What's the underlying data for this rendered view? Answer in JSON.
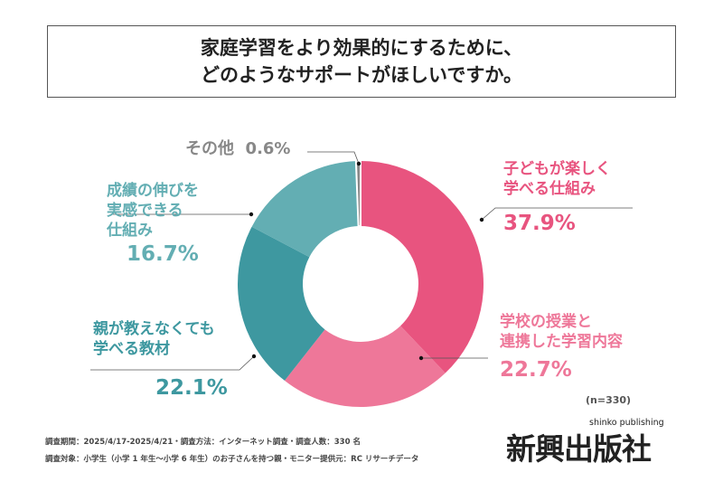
{
  "title": {
    "line1": "家庭学習をより効果的にするために、",
    "line2": "どのようなサポートがほしいですか。"
  },
  "chart_data": {
    "type": "pie",
    "donut": true,
    "categories": [
      "子どもが楽しく学べる仕組み",
      "学校の授業と連携した学習内容",
      "親が教えなくても学べる教材",
      "成績の伸びを実感できる仕組み",
      "その他"
    ],
    "values": [
      37.9,
      22.7,
      22.1,
      16.7,
      0.6
    ],
    "colors": [
      "#e8547f",
      "#ee7799",
      "#3e98a0",
      "#63aeb3",
      "#888888"
    ],
    "labels": [
      {
        "lines": [
          "子どもが楽しく",
          "学べる仕組み"
        ],
        "pct": "37.9%"
      },
      {
        "lines": [
          "学校の授業と",
          "連携した学習内容"
        ],
        "pct": "22.7%"
      },
      {
        "lines": [
          "親が教えなくても",
          "学べる教材"
        ],
        "pct": "22.1%"
      },
      {
        "lines": [
          "成績の伸びを",
          "実感できる",
          "仕組み"
        ],
        "pct": "16.7%"
      },
      {
        "lines": [
          "その他"
        ],
        "pct": "0.6%"
      }
    ],
    "n": "(n=330)"
  },
  "footer": {
    "line1": "調査期間：2025/4/17-2025/4/21・調査方法：インターネット調査・調査人数：330 名",
    "line2": "調査対象：小学生（小学 1 年生～小学 6 年生）のお子さんを持つ親・モニター提供元：RC リサーチデータ"
  },
  "logo": {
    "text": "新興出版社",
    "sub": "shinko publishing"
  }
}
